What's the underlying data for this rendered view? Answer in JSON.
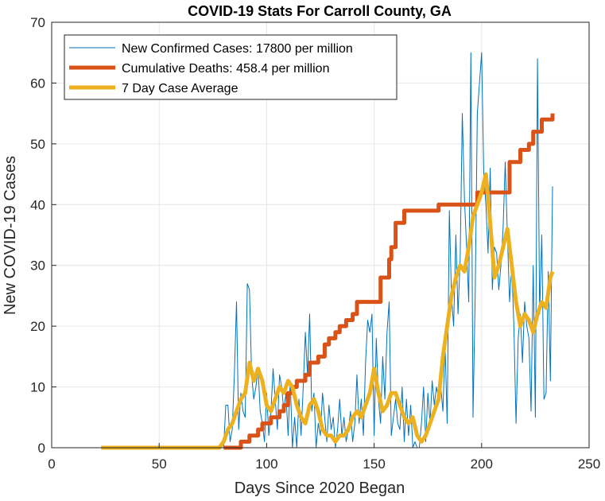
{
  "chart_data": {
    "type": "line",
    "title": "COVID-19 Stats For Carroll County, GA",
    "xlabel": "Days Since 2020 Began",
    "ylabel": "New COVID-19 Cases",
    "xlim": [
      0,
      250
    ],
    "ylim": [
      0,
      70
    ],
    "xticks": [
      0,
      50,
      100,
      150,
      200,
      250
    ],
    "yticks": [
      0,
      10,
      20,
      30,
      40,
      50,
      60,
      70
    ],
    "grid": true,
    "legend_position": "top-left",
    "series": [
      {
        "name": "New Confirmed Cases: 17800 per million",
        "color": "#0072BD",
        "style": "thin",
        "points": [
          [
            80,
            0
          ],
          [
            81,
            7
          ],
          [
            82,
            7
          ],
          [
            83,
            1
          ],
          [
            84,
            3
          ],
          [
            85,
            12
          ],
          [
            86,
            24
          ],
          [
            87,
            3
          ],
          [
            88,
            9
          ],
          [
            89,
            6
          ],
          [
            90,
            5
          ],
          [
            91,
            27
          ],
          [
            92,
            26
          ],
          [
            93,
            12
          ],
          [
            94,
            8
          ],
          [
            95,
            10
          ],
          [
            96,
            13
          ],
          [
            97,
            6
          ],
          [
            98,
            4
          ],
          [
            99,
            1
          ],
          [
            100,
            9
          ],
          [
            101,
            2
          ],
          [
            102,
            6
          ],
          [
            103,
            13
          ],
          [
            104,
            8
          ],
          [
            105,
            3
          ],
          [
            106,
            12
          ],
          [
            107,
            10
          ],
          [
            108,
            6
          ],
          [
            109,
            9
          ],
          [
            110,
            2
          ],
          [
            111,
            11
          ],
          [
            112,
            0
          ],
          [
            113,
            5
          ],
          [
            114,
            0
          ],
          [
            115,
            8
          ],
          [
            116,
            2
          ],
          [
            117,
            10
          ],
          [
            118,
            19
          ],
          [
            119,
            12
          ],
          [
            120,
            22
          ],
          [
            121,
            6
          ],
          [
            122,
            9
          ],
          [
            123,
            0
          ],
          [
            124,
            4
          ],
          [
            125,
            2
          ],
          [
            126,
            9
          ],
          [
            127,
            5
          ],
          [
            128,
            1
          ],
          [
            129,
            7
          ],
          [
            130,
            3
          ],
          [
            131,
            5
          ],
          [
            132,
            0
          ],
          [
            133,
            3
          ],
          [
            134,
            8
          ],
          [
            135,
            2
          ],
          [
            136,
            5
          ],
          [
            137,
            1
          ],
          [
            138,
            3
          ],
          [
            139,
            6
          ],
          [
            140,
            1
          ],
          [
            141,
            4
          ],
          [
            142,
            12
          ],
          [
            143,
            4
          ],
          [
            144,
            8
          ],
          [
            145,
            2
          ],
          [
            146,
            14
          ],
          [
            147,
            21
          ],
          [
            148,
            19
          ],
          [
            149,
            22
          ],
          [
            150,
            2
          ],
          [
            151,
            18
          ],
          [
            152,
            8
          ],
          [
            153,
            4
          ],
          [
            154,
            15
          ],
          [
            155,
            8
          ],
          [
            156,
            19
          ],
          [
            157,
            24
          ],
          [
            158,
            2
          ],
          [
            159,
            5
          ],
          [
            160,
            8
          ],
          [
            161,
            4
          ],
          [
            162,
            3
          ],
          [
            163,
            10
          ],
          [
            164,
            1
          ],
          [
            165,
            8
          ],
          [
            166,
            2
          ],
          [
            167,
            7
          ],
          [
            168,
            0
          ],
          [
            169,
            1
          ],
          [
            170,
            0
          ],
          [
            171,
            0
          ],
          [
            172,
            4
          ],
          [
            173,
            10
          ],
          [
            174,
            1
          ],
          [
            175,
            9
          ],
          [
            176,
            4
          ],
          [
            177,
            11
          ],
          [
            178,
            7
          ],
          [
            179,
            10
          ],
          [
            180,
            8
          ],
          [
            181,
            10
          ],
          [
            182,
            6
          ],
          [
            183,
            17
          ],
          [
            184,
            4
          ],
          [
            185,
            39
          ],
          [
            186,
            25
          ],
          [
            187,
            20
          ],
          [
            188,
            35
          ],
          [
            189,
            22
          ],
          [
            190,
            31
          ],
          [
            191,
            55
          ],
          [
            192,
            41
          ],
          [
            193,
            33
          ],
          [
            194,
            24
          ],
          [
            195,
            65
          ],
          [
            196,
            5
          ],
          [
            197,
            25
          ],
          [
            198,
            55
          ],
          [
            199,
            60
          ],
          [
            200,
            65
          ],
          [
            201,
            45
          ],
          [
            202,
            40
          ],
          [
            203,
            32
          ],
          [
            204,
            46
          ],
          [
            205,
            26
          ],
          [
            206,
            33
          ],
          [
            207,
            32
          ],
          [
            208,
            26
          ],
          [
            209,
            30
          ],
          [
            210,
            36
          ],
          [
            211,
            47
          ],
          [
            212,
            35
          ],
          [
            213,
            24
          ],
          [
            214,
            30
          ],
          [
            215,
            20
          ],
          [
            216,
            4
          ],
          [
            217,
            18
          ],
          [
            218,
            22
          ],
          [
            219,
            14
          ],
          [
            220,
            24
          ],
          [
            221,
            20
          ],
          [
            222,
            18
          ],
          [
            223,
            6
          ],
          [
            224,
            30
          ],
          [
            225,
            5
          ],
          [
            226,
            64
          ],
          [
            227,
            22
          ],
          [
            228,
            35
          ],
          [
            229,
            8
          ],
          [
            230,
            9
          ],
          [
            231,
            29
          ],
          [
            232,
            11
          ],
          [
            233,
            43
          ]
        ]
      },
      {
        "name": "Cumulative Deaths: 458.4 per million",
        "color": "#D95319",
        "style": "step",
        "points": [
          [
            80,
            0
          ],
          [
            88,
            0
          ],
          [
            88,
            1
          ],
          [
            92,
            1
          ],
          [
            92,
            2
          ],
          [
            96,
            2
          ],
          [
            96,
            3
          ],
          [
            98,
            3
          ],
          [
            98,
            4
          ],
          [
            102,
            4
          ],
          [
            102,
            5
          ],
          [
            106,
            5
          ],
          [
            106,
            6
          ],
          [
            108,
            6
          ],
          [
            108,
            7
          ],
          [
            110,
            7
          ],
          [
            110,
            9
          ],
          [
            112,
            9
          ],
          [
            112,
            10
          ],
          [
            114,
            10
          ],
          [
            114,
            11
          ],
          [
            118,
            11
          ],
          [
            118,
            12
          ],
          [
            120,
            12
          ],
          [
            120,
            14
          ],
          [
            124,
            14
          ],
          [
            124,
            15
          ],
          [
            127,
            15
          ],
          [
            127,
            17
          ],
          [
            129,
            17
          ],
          [
            129,
            18
          ],
          [
            132,
            18
          ],
          [
            132,
            19
          ],
          [
            134,
            19
          ],
          [
            134,
            20
          ],
          [
            137,
            20
          ],
          [
            137,
            21
          ],
          [
            140,
            21
          ],
          [
            140,
            22
          ],
          [
            142,
            22
          ],
          [
            142,
            24
          ],
          [
            153,
            24
          ],
          [
            153,
            28
          ],
          [
            157,
            28
          ],
          [
            157,
            31
          ],
          [
            158,
            31
          ],
          [
            158,
            33
          ],
          [
            160,
            33
          ],
          [
            160,
            37
          ],
          [
            164,
            37
          ],
          [
            164,
            39
          ],
          [
            180,
            39
          ],
          [
            180,
            40
          ],
          [
            198,
            40
          ],
          [
            198,
            42
          ],
          [
            213,
            42
          ],
          [
            213,
            47
          ],
          [
            218,
            47
          ],
          [
            218,
            49
          ],
          [
            222,
            49
          ],
          [
            222,
            50
          ],
          [
            224,
            50
          ],
          [
            224,
            52
          ],
          [
            228,
            52
          ],
          [
            228,
            54
          ],
          [
            233,
            54
          ],
          [
            233,
            55
          ]
        ]
      },
      {
        "name": "7 Day Case Average",
        "color": "#EDB120",
        "style": "thick",
        "points": [
          [
            23,
            0
          ],
          [
            78,
            0
          ],
          [
            80,
            1
          ],
          [
            82,
            3
          ],
          [
            84,
            4
          ],
          [
            86,
            6
          ],
          [
            88,
            8
          ],
          [
            90,
            9
          ],
          [
            92,
            14
          ],
          [
            94,
            11
          ],
          [
            96,
            13
          ],
          [
            98,
            11
          ],
          [
            100,
            7
          ],
          [
            102,
            6
          ],
          [
            104,
            8
          ],
          [
            106,
            10
          ],
          [
            108,
            9
          ],
          [
            110,
            11
          ],
          [
            112,
            10
          ],
          [
            114,
            7
          ],
          [
            116,
            5
          ],
          [
            118,
            4
          ],
          [
            120,
            7
          ],
          [
            122,
            8
          ],
          [
            124,
            6
          ],
          [
            126,
            3
          ],
          [
            128,
            2
          ],
          [
            130,
            2
          ],
          [
            132,
            1
          ],
          [
            134,
            2
          ],
          [
            136,
            2
          ],
          [
            138,
            3
          ],
          [
            140,
            5
          ],
          [
            142,
            6
          ],
          [
            144,
            5
          ],
          [
            146,
            7
          ],
          [
            148,
            9
          ],
          [
            150,
            13
          ],
          [
            152,
            9
          ],
          [
            154,
            6
          ],
          [
            156,
            7
          ],
          [
            158,
            9
          ],
          [
            160,
            9
          ],
          [
            162,
            7
          ],
          [
            164,
            5
          ],
          [
            166,
            4
          ],
          [
            168,
            5
          ],
          [
            170,
            2
          ],
          [
            172,
            1
          ],
          [
            174,
            2
          ],
          [
            176,
            4
          ],
          [
            178,
            6
          ],
          [
            180,
            8
          ],
          [
            182,
            15
          ],
          [
            184,
            20
          ],
          [
            186,
            25
          ],
          [
            188,
            28
          ],
          [
            190,
            30
          ],
          [
            192,
            29
          ],
          [
            194,
            33
          ],
          [
            196,
            38
          ],
          [
            198,
            40
          ],
          [
            200,
            42
          ],
          [
            202,
            45
          ],
          [
            204,
            37
          ],
          [
            206,
            28
          ],
          [
            208,
            30
          ],
          [
            210,
            33
          ],
          [
            212,
            36
          ],
          [
            214,
            30
          ],
          [
            216,
            24
          ],
          [
            218,
            20
          ],
          [
            220,
            22
          ],
          [
            222,
            21
          ],
          [
            224,
            19
          ],
          [
            226,
            22
          ],
          [
            228,
            24
          ],
          [
            230,
            23
          ],
          [
            232,
            28
          ],
          [
            233,
            29
          ]
        ]
      }
    ]
  }
}
